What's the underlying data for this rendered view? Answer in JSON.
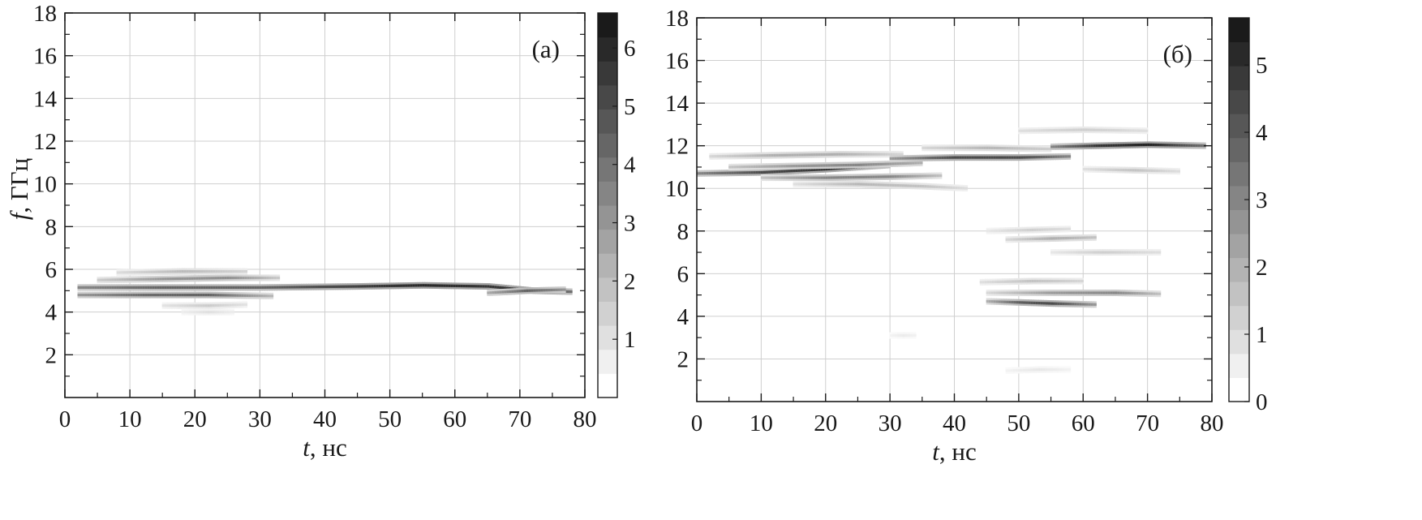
{
  "chart_data": [
    {
      "type": "heatmap",
      "panel_label": "(а)",
      "xlabel_symbol": "t",
      "xlabel_unit": ", нс",
      "ylabel_symbol": "f",
      "ylabel_unit": ", ГГц",
      "xlim": [
        0,
        80
      ],
      "ylim": [
        0,
        18
      ],
      "xticks": [
        0,
        10,
        20,
        30,
        40,
        50,
        60,
        70,
        80
      ],
      "yticks": [
        2,
        4,
        6,
        8,
        10,
        12,
        14,
        16,
        18
      ],
      "grid": true,
      "colormap": [
        "#ffffff",
        "#1a1a1a"
      ],
      "colorbar": {
        "range": [
          0,
          6.6
        ],
        "ticks": [
          1,
          2,
          3,
          4,
          5,
          6
        ],
        "levels": 16,
        "show_zero": false
      },
      "ridges": [
        {
          "t": [
            2,
            15,
            30,
            45,
            55,
            65,
            72,
            78
          ],
          "f": [
            5.15,
            5.15,
            5.15,
            5.2,
            5.25,
            5.2,
            5.0,
            4.95
          ],
          "intensity": [
            3.5,
            4.5,
            4.5,
            5.5,
            6.2,
            5.8,
            6.0,
            4.0
          ]
        },
        {
          "t": [
            2,
            12,
            22,
            32
          ],
          "f": [
            4.8,
            4.8,
            4.8,
            4.75
          ],
          "intensity": [
            3.0,
            4.2,
            4.5,
            2.0
          ]
        },
        {
          "t": [
            5,
            15,
            25,
            33
          ],
          "f": [
            5.5,
            5.55,
            5.6,
            5.6
          ],
          "intensity": [
            1.5,
            3.0,
            3.2,
            1.5
          ]
        },
        {
          "t": [
            8,
            18,
            28
          ],
          "f": [
            5.85,
            5.9,
            5.9
          ],
          "intensity": [
            1.0,
            2.0,
            1.2
          ]
        },
        {
          "t": [
            15,
            22,
            28
          ],
          "f": [
            4.3,
            4.3,
            4.35
          ],
          "intensity": [
            0.8,
            1.5,
            0.8
          ]
        },
        {
          "t": [
            18,
            22,
            26
          ],
          "f": [
            4.0,
            4.0,
            4.0
          ],
          "intensity": [
            0.5,
            0.9,
            0.5
          ]
        },
        {
          "t": [
            65,
            71,
            77
          ],
          "f": [
            4.9,
            5.0,
            5.05
          ],
          "intensity": [
            2.5,
            4.5,
            3.0
          ]
        }
      ]
    },
    {
      "type": "heatmap",
      "panel_label": "(б)",
      "xlabel_symbol": "t",
      "xlabel_unit": ", нс",
      "ylabel_symbol": "",
      "ylabel_unit": "",
      "xlim": [
        0,
        80
      ],
      "ylim": [
        0,
        18
      ],
      "xticks": [
        0,
        10,
        20,
        30,
        40,
        50,
        60,
        70,
        80
      ],
      "yticks": [
        2,
        4,
        6,
        8,
        10,
        12,
        14,
        16,
        18
      ],
      "grid": true,
      "colormap": [
        "#ffffff",
        "#1a1a1a"
      ],
      "colorbar": {
        "range": [
          0,
          5.7
        ],
        "ticks": [
          0,
          1,
          2,
          3,
          4,
          5
        ],
        "levels": 16,
        "show_zero": true
      },
      "ridges": [
        {
          "t": [
            0,
            10,
            20,
            30
          ],
          "f": [
            10.7,
            10.75,
            10.9,
            11.1
          ],
          "intensity": [
            3.0,
            4.5,
            5.0,
            3.5
          ]
        },
        {
          "t": [
            5,
            15,
            25,
            35
          ],
          "f": [
            11.0,
            11.05,
            11.1,
            11.2
          ],
          "intensity": [
            1.5,
            2.5,
            3.0,
            2.0
          ]
        },
        {
          "t": [
            10,
            20,
            30,
            38
          ],
          "f": [
            10.5,
            10.5,
            10.55,
            10.6
          ],
          "intensity": [
            1.5,
            3.0,
            3.0,
            1.5
          ]
        },
        {
          "t": [
            2,
            12,
            22,
            32
          ],
          "f": [
            11.5,
            11.55,
            11.6,
            11.6
          ],
          "intensity": [
            1.0,
            2.0,
            2.0,
            1.0
          ]
        },
        {
          "t": [
            15,
            25,
            35,
            42
          ],
          "f": [
            10.2,
            10.2,
            10.1,
            10.0
          ],
          "intensity": [
            0.8,
            1.8,
            1.5,
            0.8
          ]
        },
        {
          "t": [
            30,
            40,
            50,
            58
          ],
          "f": [
            11.4,
            11.45,
            11.45,
            11.5
          ],
          "intensity": [
            2.5,
            4.5,
            4.5,
            3.0
          ]
        },
        {
          "t": [
            35,
            45,
            55
          ],
          "f": [
            11.9,
            11.9,
            11.85
          ],
          "intensity": [
            1.0,
            1.8,
            1.2
          ]
        },
        {
          "t": [
            55,
            62,
            70,
            79
          ],
          "f": [
            11.95,
            12.0,
            12.05,
            12.0
          ],
          "intensity": [
            3.0,
            5.0,
            5.5,
            3.5
          ]
        },
        {
          "t": [
            50,
            60,
            70
          ],
          "f": [
            12.7,
            12.75,
            12.7
          ],
          "intensity": [
            0.8,
            1.2,
            0.8
          ]
        },
        {
          "t": [
            60,
            68,
            75
          ],
          "f": [
            10.9,
            10.85,
            10.8
          ],
          "intensity": [
            0.8,
            1.5,
            0.8
          ]
        },
        {
          "t": [
            45,
            50,
            55,
            62
          ],
          "f": [
            4.7,
            4.65,
            4.6,
            4.55
          ],
          "intensity": [
            2.0,
            4.0,
            4.5,
            2.5
          ]
        },
        {
          "t": [
            45,
            55,
            65,
            72
          ],
          "f": [
            5.1,
            5.1,
            5.1,
            5.05
          ],
          "intensity": [
            1.0,
            2.5,
            3.0,
            1.5
          ]
        },
        {
          "t": [
            44,
            52,
            60
          ],
          "f": [
            5.6,
            5.65,
            5.65
          ],
          "intensity": [
            0.8,
            1.5,
            1.0
          ]
        },
        {
          "t": [
            48,
            55,
            62
          ],
          "f": [
            7.6,
            7.65,
            7.7
          ],
          "intensity": [
            1.0,
            2.0,
            1.5
          ]
        },
        {
          "t": [
            45,
            52,
            58
          ],
          "f": [
            8.0,
            8.05,
            8.1
          ],
          "intensity": [
            0.6,
            1.2,
            0.8
          ]
        },
        {
          "t": [
            55,
            63,
            72
          ],
          "f": [
            7.0,
            7.0,
            7.0
          ],
          "intensity": [
            0.6,
            1.2,
            0.8
          ]
        },
        {
          "t": [
            48,
            53,
            58
          ],
          "f": [
            1.45,
            1.5,
            1.5
          ],
          "intensity": [
            0.3,
            0.6,
            0.3
          ]
        },
        {
          "t": [
            30,
            32,
            34
          ],
          "f": [
            3.1,
            3.1,
            3.1
          ],
          "intensity": [
            0.3,
            0.5,
            0.3
          ]
        }
      ]
    }
  ]
}
